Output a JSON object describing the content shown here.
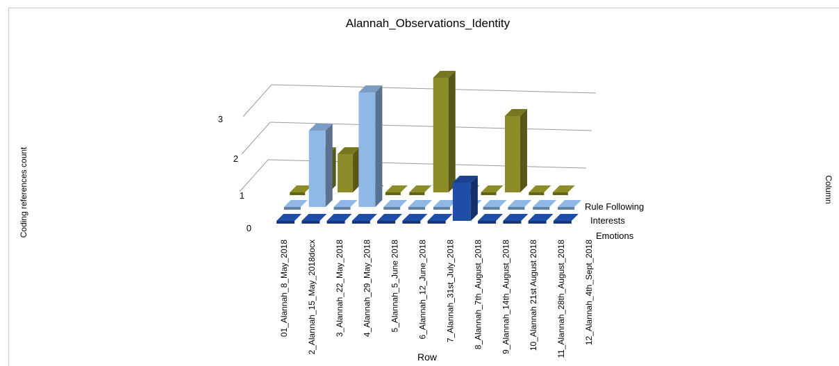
{
  "chart_data": {
    "type": "bar",
    "subtype": "3d-grouped",
    "title": "Alannah_Observations_Identity",
    "ylabel": "Coding references count",
    "xlabel": "Row",
    "zlabel": "Column",
    "ylim": [
      0,
      3
    ],
    "yticks": [
      0,
      1,
      2,
      3
    ],
    "grid": true,
    "categories": [
      "01_Alannah_8_May_2018",
      "2_Alannah_15_May_2018docx",
      "3_Alannah_22_May_2018",
      "4_Alannah_29_May_2018",
      "5_Alannah_5_June 2018",
      "6_Alannah_12_June_2018",
      "7_Alannah_31st_July_2018",
      "8_Alannah_7th_August_2018",
      "9_Alannah_14th_August_2018",
      "10_Alannah 21st August 2018",
      "11_Alannah_28th_August_2018",
      "12_Alannah_4th_Sept_2018"
    ],
    "series": [
      {
        "name": "Emotions",
        "color": "#1f4ea8",
        "values": [
          0,
          0,
          0,
          0,
          0,
          0,
          0,
          1,
          0,
          0,
          0,
          0
        ]
      },
      {
        "name": "Interests",
        "color": "#8fb8e6",
        "values": [
          0,
          2,
          0,
          3,
          0,
          0,
          0,
          0,
          0,
          0,
          0,
          0
        ]
      },
      {
        "name": "Rule Following",
        "color": "#8c8c28",
        "values": [
          0,
          1,
          1,
          0,
          0,
          0,
          3,
          0,
          0,
          2,
          0,
          0
        ]
      }
    ]
  }
}
